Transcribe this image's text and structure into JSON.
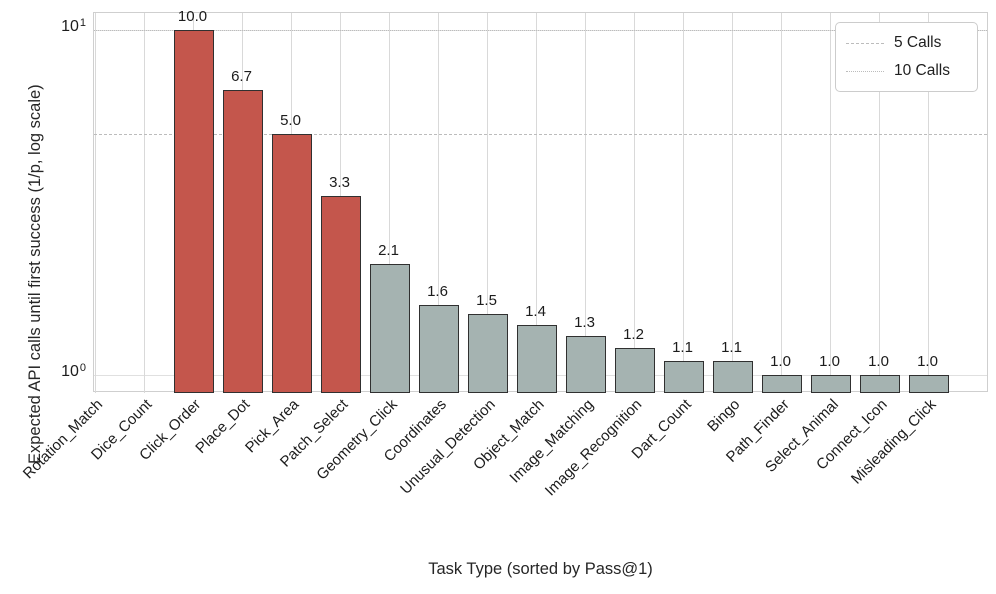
{
  "chart_data": {
    "type": "bar",
    "title": "",
    "xlabel": "Task Type (sorted by Pass@1)",
    "ylabel": "Expected API calls until first success (1/p, log scale)",
    "yscale": "log",
    "ylim": [
      0.89,
      11.2
    ],
    "grid": true,
    "legend_position": "upper right",
    "categories": [
      "Rotation_Match",
      "Dice_Count",
      "Click_Order",
      "Place_Dot",
      "Pick_Area",
      "Patch_Select",
      "Geometry_Click",
      "Coordinates",
      "Unusual_Detection",
      "Object_Match",
      "Image_Matching",
      "Image_Recognition",
      "Dart_Count",
      "Bingo",
      "Path_Finder",
      "Select_Animal",
      "Connect_Icon",
      "Misleading_Click"
    ],
    "values": [
      null,
      null,
      10.0,
      6.7,
      5.0,
      3.3,
      2.1,
      1.6,
      1.5,
      1.4,
      1.3,
      1.2,
      1.1,
      1.1,
      1.0,
      1.0,
      1.0,
      1.0
    ],
    "value_labels": [
      "",
      "",
      "10.0",
      "6.7",
      "5.0",
      "3.3",
      "2.1",
      "1.6",
      "1.5",
      "1.4",
      "1.3",
      "1.2",
      "1.1",
      "1.1",
      "1.0",
      "1.0",
      "1.0",
      "1.0"
    ],
    "highlight_indices": [
      2,
      3,
      4,
      5
    ],
    "yticks": [
      {
        "base": "10",
        "exp": "0",
        "value": 1
      },
      {
        "base": "10",
        "exp": "1",
        "value": 10
      }
    ],
    "reference_lines": [
      {
        "label": "5 Calls",
        "value": 5,
        "style": "dashed"
      },
      {
        "label": "10 Calls",
        "value": 10,
        "style": "dotted"
      }
    ],
    "colors": {
      "bar_highlight": "#c4564c",
      "bar_base": "#a5b3b1",
      "bar_edge": "#303030",
      "grid_line": "#d9d9d9",
      "reference_line": "#bcbcbc",
      "axis_spine": "#cfcfcf",
      "text": "#262626"
    }
  }
}
